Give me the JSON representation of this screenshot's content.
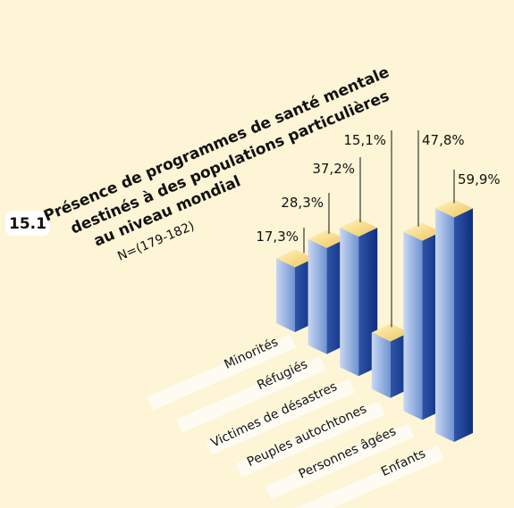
{
  "chart_data": {
    "type": "bar3d",
    "badge": "15.1",
    "title": [
      "Présence de programmes de santé mentale",
      "destinés à des populations particulières",
      "au niveau mondial"
    ],
    "subtitle": "N=(179-182)",
    "categories": [
      "Minorités",
      "Réfugiés",
      "Victimes de désastres",
      "Peuples autochtones",
      "Personnes âgées",
      "Enfants"
    ],
    "values": [
      17.3,
      28.3,
      37.2,
      15.1,
      47.8,
      59.9
    ],
    "value_labels": [
      "17,3%",
      "28,3%",
      "37,2%",
      "15,1%",
      "47,8%",
      "59,9%"
    ],
    "color": "#5b82c8"
  }
}
